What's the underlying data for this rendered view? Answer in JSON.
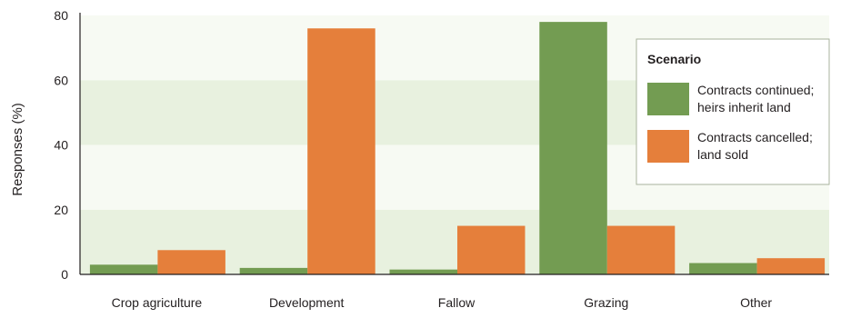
{
  "chart_data": {
    "type": "bar",
    "title": "",
    "xlabel": "",
    "ylabel": "Responses (%)",
    "ylim": [
      0,
      80
    ],
    "yticks": [
      0,
      20,
      40,
      60,
      80
    ],
    "grid": "alternating horizontal bands",
    "legend_position": "right",
    "legend_title": "Scenario",
    "categories": [
      "Crop agriculture",
      "Development",
      "Fallow",
      "Grazing",
      "Other"
    ],
    "series": [
      {
        "name": "Contracts continued; heirs inherit land",
        "name_lines": [
          "Contracts continued;",
          "heirs inherit land"
        ],
        "color": "#739c52",
        "values": [
          3,
          2,
          1.5,
          78,
          3.5
        ]
      },
      {
        "name": "Contracts cancelled; land sold",
        "name_lines": [
          "Contracts cancelled;",
          "land sold"
        ],
        "color": "#e57f3b",
        "values": [
          7.5,
          76,
          15,
          15,
          5
        ]
      }
    ],
    "colors": {
      "band_dark": "#e8f1df",
      "band_light": "#f7faf3",
      "axis": "#231f20"
    }
  }
}
